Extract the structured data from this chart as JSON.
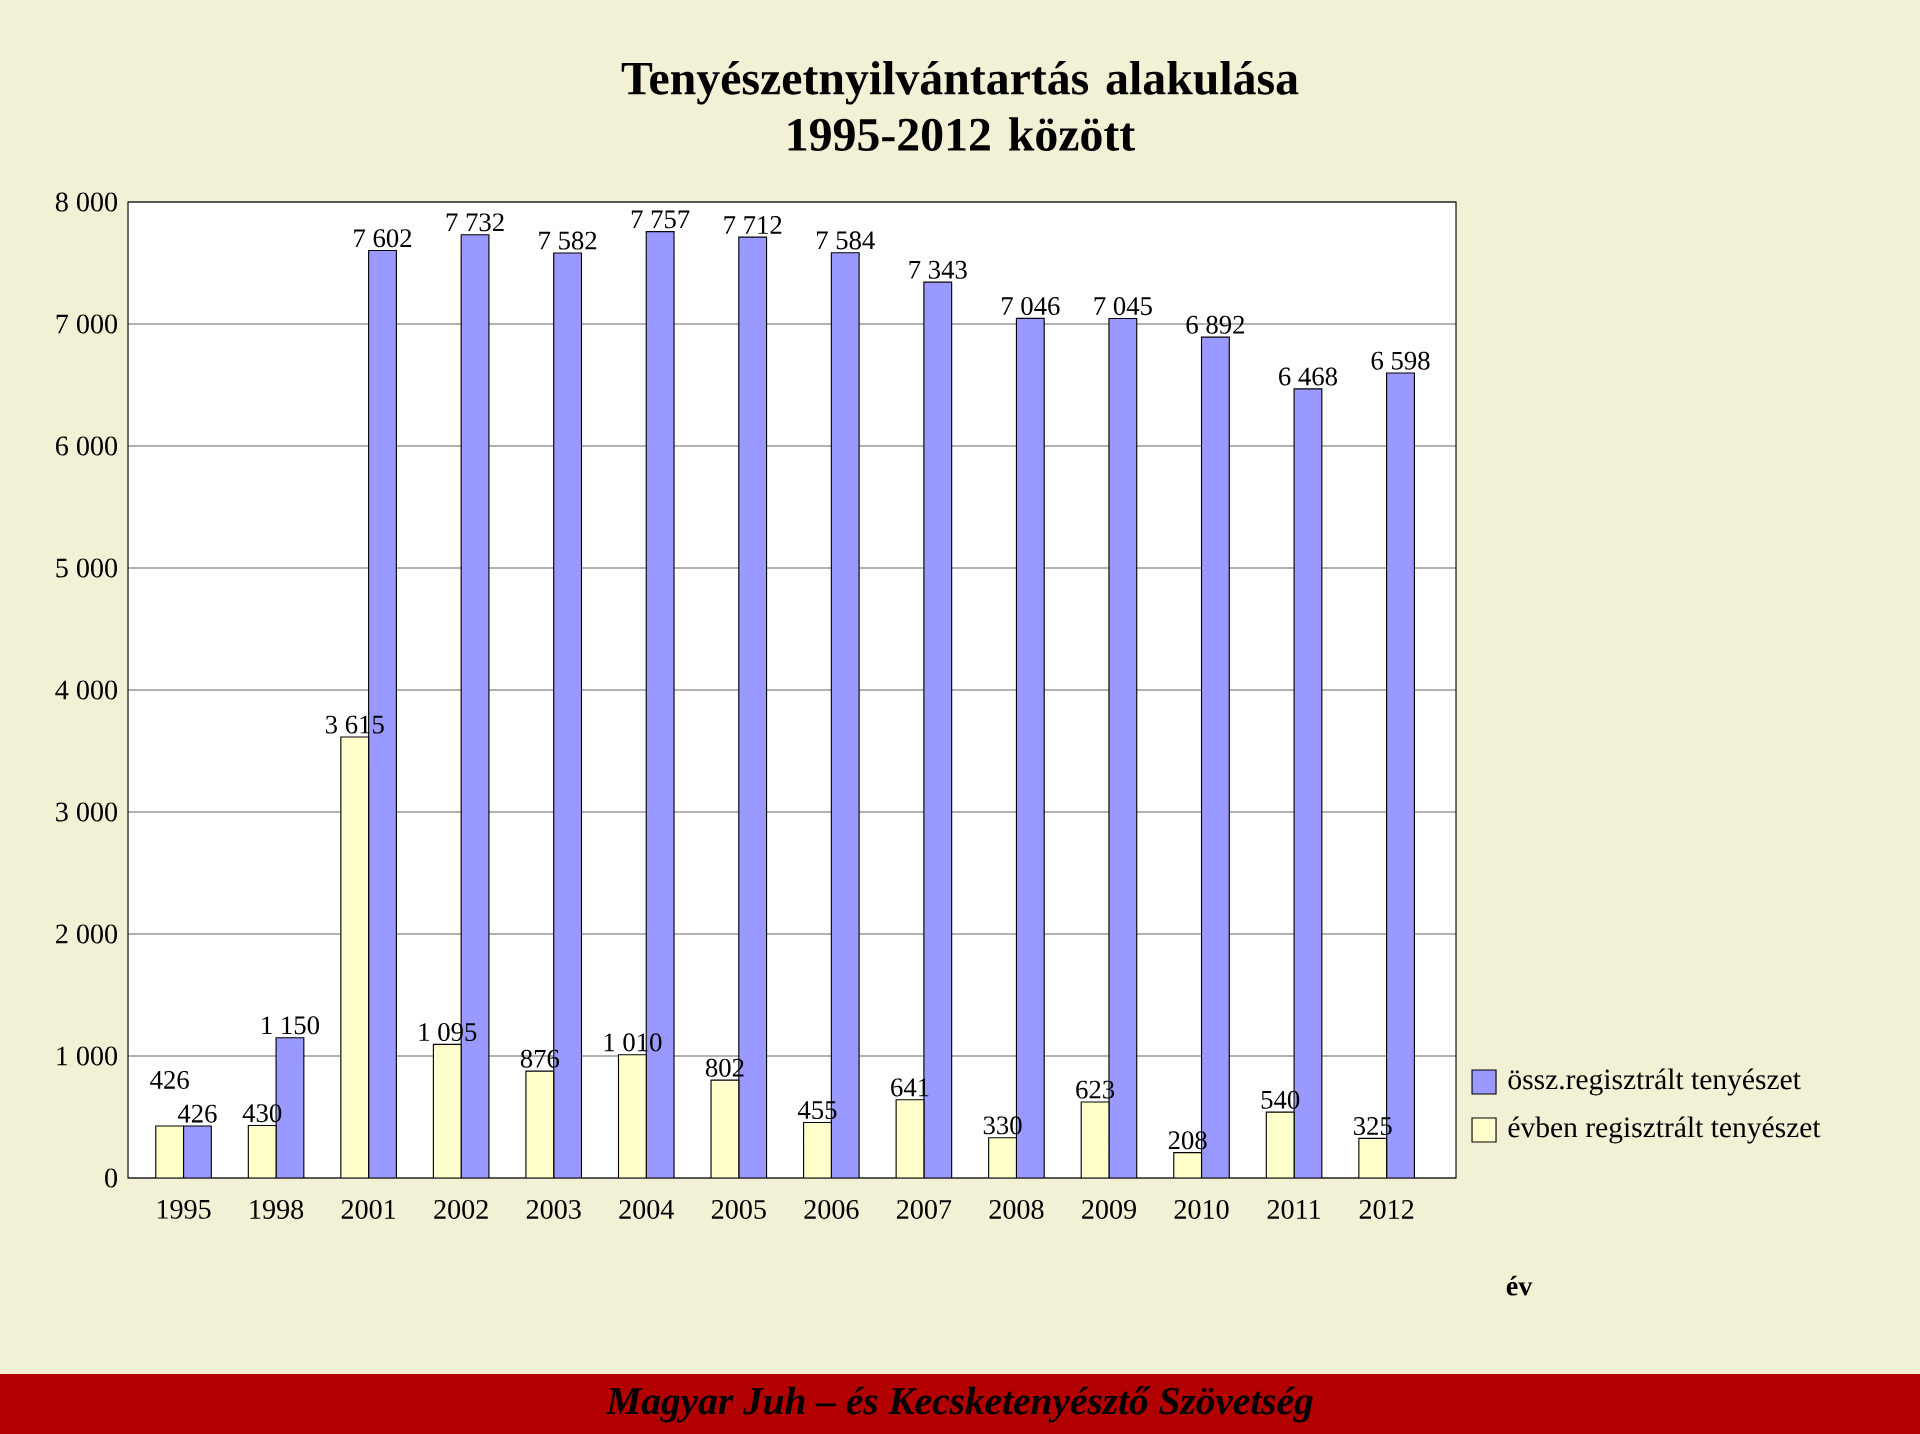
{
  "chart_data": {
    "type": "bar",
    "title": "Tenyészetnyilvántartás alakulása\n1995-2012 között",
    "xlabel": "év",
    "categories": [
      "1995",
      "1998",
      "2001",
      "2002",
      "2003",
      "2004",
      "2005",
      "2006",
      "2007",
      "2008",
      "2009",
      "2010",
      "2011",
      "2012"
    ],
    "series": [
      {
        "name": "össz.regisztrált tenyészet",
        "color": "#9999ff",
        "values": [
          426,
          1150,
          7602,
          7732,
          7582,
          7757,
          7712,
          7584,
          7343,
          7046,
          7045,
          6892,
          6468,
          6598
        ],
        "value_labels": [
          "426",
          "1 150",
          "7 602",
          "7 732",
          "7 582",
          "7 757",
          "7 712",
          "7 584",
          "7 343",
          "7 046",
          "7 045",
          "6 892",
          "6 468",
          "6 598"
        ]
      },
      {
        "name": "évben regisztrált tenyészet",
        "color": "#ffffcc",
        "values": [
          426,
          430,
          3615,
          1095,
          876,
          1010,
          802,
          455,
          641,
          330,
          623,
          208,
          540,
          325
        ],
        "value_labels": [
          "426",
          "430",
          "3 615",
          "1 095",
          "876",
          "1 010",
          "802",
          "455",
          "641",
          "330",
          "623",
          "208",
          "540",
          "325"
        ]
      }
    ],
    "ylim": [
      0,
      8000
    ],
    "yticks": [
      {
        "value": 0,
        "label": "0"
      },
      {
        "value": 1000,
        "label": "1 000"
      },
      {
        "value": 2000,
        "label": "2 000"
      },
      {
        "value": 3000,
        "label": "3 000"
      },
      {
        "value": 4000,
        "label": "4 000"
      },
      {
        "value": 5000,
        "label": "5 000"
      },
      {
        "value": 6000,
        "label": "6 000"
      },
      {
        "value": 7000,
        "label": "7 000"
      },
      {
        "value": 8000,
        "label": "8 000"
      }
    ],
    "grid": "y",
    "legend": "bottom right",
    "annotations": [
      "Magyar Juh – és Kecsketenyésztő Szövetség"
    ]
  }
}
